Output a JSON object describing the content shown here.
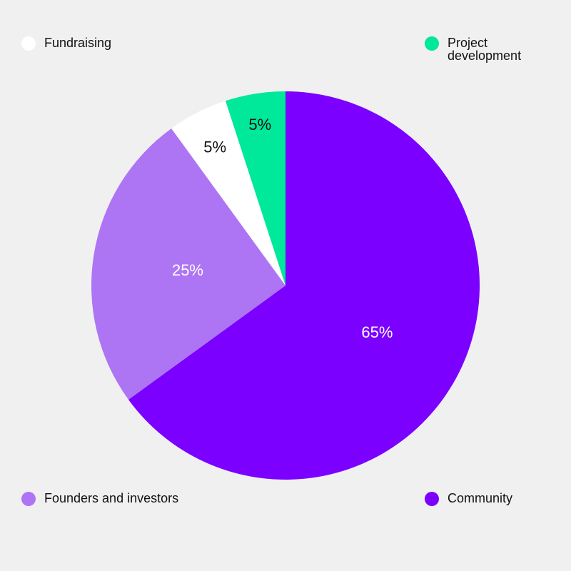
{
  "chart_data": {
    "type": "pie",
    "title": "",
    "categories": [
      "Community",
      "Founders and investors",
      "Fundraising",
      "Project development"
    ],
    "values": [
      65,
      25,
      5,
      5
    ],
    "value_labels": [
      "65%",
      "25%",
      "5%",
      "5%"
    ],
    "colors": [
      "#7b00ff",
      "#ad75f4",
      "#ffffff",
      "#00e899"
    ],
    "label_colors": [
      "#ffffff",
      "#ffffff",
      "#111111",
      "#111111"
    ],
    "start_angle": "12 o'clock",
    "direction": "clockwise",
    "legend_placement": "corners"
  },
  "legend": {
    "fundraising": "Fundraising",
    "project_development": "Project development",
    "founders": "Founders and investors",
    "community": "Community"
  },
  "colors": {
    "background": "#f0f0f0",
    "community": "#7b00ff",
    "founders": "#ad75f4",
    "fundraising": "#ffffff",
    "project_development": "#00e899"
  }
}
